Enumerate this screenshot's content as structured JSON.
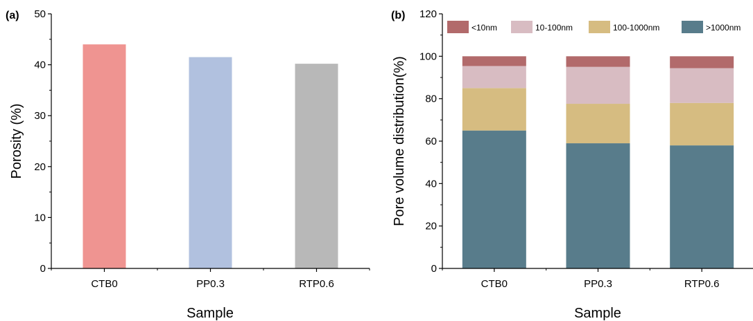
{
  "chart_data": [
    {
      "panel_label": "(a)",
      "type": "bar",
      "xlabel": "Sample",
      "ylabel": "Porosity (%)",
      "categories": [
        "CTB0",
        "PP0.3",
        "RTP0.6"
      ],
      "values": [
        44.0,
        41.5,
        40.2
      ],
      "colors": [
        "#ef9491",
        "#b1c1df",
        "#b8b8b8"
      ],
      "ylim": [
        0,
        50
      ],
      "yticks": [
        "0",
        "10",
        "20",
        "30",
        "40",
        "50"
      ],
      "grid": false
    },
    {
      "panel_label": "(b)",
      "type": "bar",
      "stacked": true,
      "xlabel": "Sample",
      "ylabel": "Pore volume distribution(%)",
      "categories": [
        "CTB0",
        "PP0.3",
        "RTP0.6"
      ],
      "series": [
        {
          "name": ">1000nm",
          "color": "#587c8b",
          "values": [
            65,
            59,
            58
          ]
        },
        {
          "name": "100-1000nm",
          "color": "#d6bc81",
          "values": [
            20,
            18.6,
            20
          ]
        },
        {
          "name": "10-100nm",
          "color": "#d8bcc2",
          "values": [
            10.4,
            17.4,
            16.4
          ]
        },
        {
          "name": "<10nm",
          "color": "#b26a6b",
          "values": [
            4.6,
            5,
            5.6
          ]
        }
      ],
      "legend_order": [
        "<10nm",
        "10-100nm",
        "100-1000nm",
        ">1000nm"
      ],
      "legend_placement": "top",
      "ylim": [
        0,
        120
      ],
      "yticks": [
        "0",
        "20",
        "40",
        "60",
        "80",
        "100",
        "120"
      ],
      "grid": false
    }
  ]
}
